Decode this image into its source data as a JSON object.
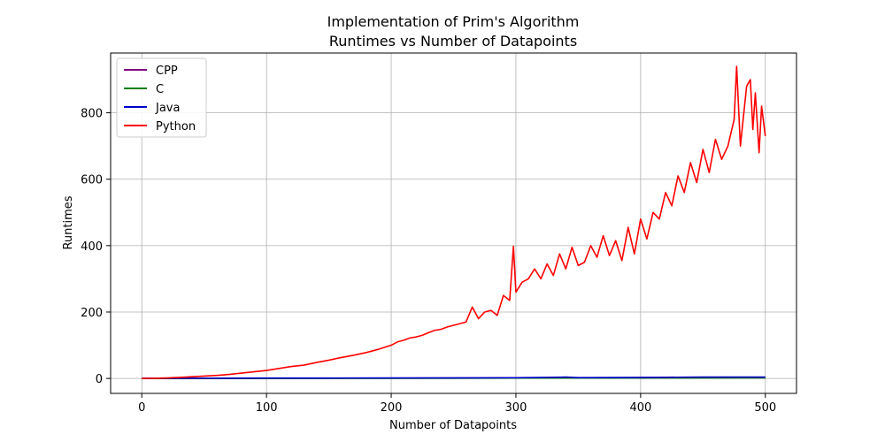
{
  "chart_data": {
    "type": "line",
    "title_line1": "Implementation of Prim's Algorithm",
    "title_line2": "Runtimes vs Number of Datapoints",
    "xlabel": "Number of Datapoints",
    "ylabel": "Runtimes",
    "xlim": [
      -25,
      525
    ],
    "ylim": [
      -45,
      980
    ],
    "x_ticks": [
      0,
      100,
      200,
      300,
      400,
      500
    ],
    "y_ticks": [
      0,
      200,
      400,
      600,
      800
    ],
    "grid": true,
    "legend_position": "upper-left",
    "series": [
      {
        "name": "CPP",
        "color": "#800080",
        "points": [
          [
            0,
            0
          ],
          [
            100,
            0.2
          ],
          [
            200,
            0.6
          ],
          [
            300,
            1.0
          ],
          [
            400,
            1.5
          ],
          [
            500,
            2.0
          ]
        ]
      },
      {
        "name": "C",
        "color": "#008000",
        "points": [
          [
            0,
            0
          ],
          [
            100,
            0.2
          ],
          [
            200,
            0.5
          ],
          [
            300,
            0.9
          ],
          [
            400,
            1.3
          ],
          [
            500,
            1.8
          ]
        ]
      },
      {
        "name": "Java",
        "color": "#0000cc",
        "points": [
          [
            0,
            0.5
          ],
          [
            50,
            0.6
          ],
          [
            100,
            1
          ],
          [
            150,
            1.2
          ],
          [
            200,
            1.5
          ],
          [
            250,
            1.8
          ],
          [
            300,
            2
          ],
          [
            340,
            4
          ],
          [
            350,
            2.5
          ],
          [
            400,
            3
          ],
          [
            420,
            3.5
          ],
          [
            450,
            4
          ],
          [
            500,
            4
          ]
        ]
      },
      {
        "name": "Python",
        "color": "#ff0000",
        "points": [
          [
            0,
            0
          ],
          [
            10,
            0.5
          ],
          [
            20,
            1.5
          ],
          [
            30,
            3
          ],
          [
            40,
            5
          ],
          [
            50,
            7
          ],
          [
            60,
            9
          ],
          [
            70,
            12
          ],
          [
            80,
            16
          ],
          [
            90,
            20
          ],
          [
            100,
            24
          ],
          [
            110,
            30
          ],
          [
            120,
            36
          ],
          [
            130,
            40
          ],
          [
            140,
            48
          ],
          [
            150,
            55
          ],
          [
            160,
            63
          ],
          [
            170,
            70
          ],
          [
            180,
            78
          ],
          [
            190,
            88
          ],
          [
            200,
            100
          ],
          [
            205,
            110
          ],
          [
            210,
            115
          ],
          [
            215,
            122
          ],
          [
            220,
            125
          ],
          [
            225,
            130
          ],
          [
            230,
            138
          ],
          [
            235,
            145
          ],
          [
            240,
            148
          ],
          [
            245,
            155
          ],
          [
            250,
            160
          ],
          [
            255,
            165
          ],
          [
            260,
            170
          ],
          [
            265,
            215
          ],
          [
            270,
            180
          ],
          [
            275,
            200
          ],
          [
            280,
            205
          ],
          [
            285,
            190
          ],
          [
            290,
            250
          ],
          [
            295,
            235
          ],
          [
            298,
            398
          ],
          [
            300,
            260
          ],
          [
            305,
            290
          ],
          [
            310,
            300
          ],
          [
            315,
            330
          ],
          [
            320,
            300
          ],
          [
            325,
            345
          ],
          [
            330,
            310
          ],
          [
            335,
            375
          ],
          [
            340,
            330
          ],
          [
            345,
            395
          ],
          [
            350,
            340
          ],
          [
            355,
            350
          ],
          [
            360,
            400
          ],
          [
            365,
            365
          ],
          [
            370,
            430
          ],
          [
            375,
            370
          ],
          [
            380,
            415
          ],
          [
            385,
            355
          ],
          [
            390,
            455
          ],
          [
            395,
            375
          ],
          [
            400,
            480
          ],
          [
            405,
            420
          ],
          [
            410,
            500
          ],
          [
            415,
            480
          ],
          [
            420,
            560
          ],
          [
            425,
            520
          ],
          [
            430,
            610
          ],
          [
            435,
            560
          ],
          [
            440,
            650
          ],
          [
            445,
            590
          ],
          [
            450,
            690
          ],
          [
            455,
            620
          ],
          [
            460,
            720
          ],
          [
            465,
            660
          ],
          [
            470,
            700
          ],
          [
            475,
            780
          ],
          [
            477,
            940
          ],
          [
            480,
            700
          ],
          [
            485,
            880
          ],
          [
            488,
            900
          ],
          [
            490,
            750
          ],
          [
            492,
            860
          ],
          [
            495,
            680
          ],
          [
            497,
            820
          ],
          [
            500,
            730
          ]
        ]
      }
    ]
  }
}
